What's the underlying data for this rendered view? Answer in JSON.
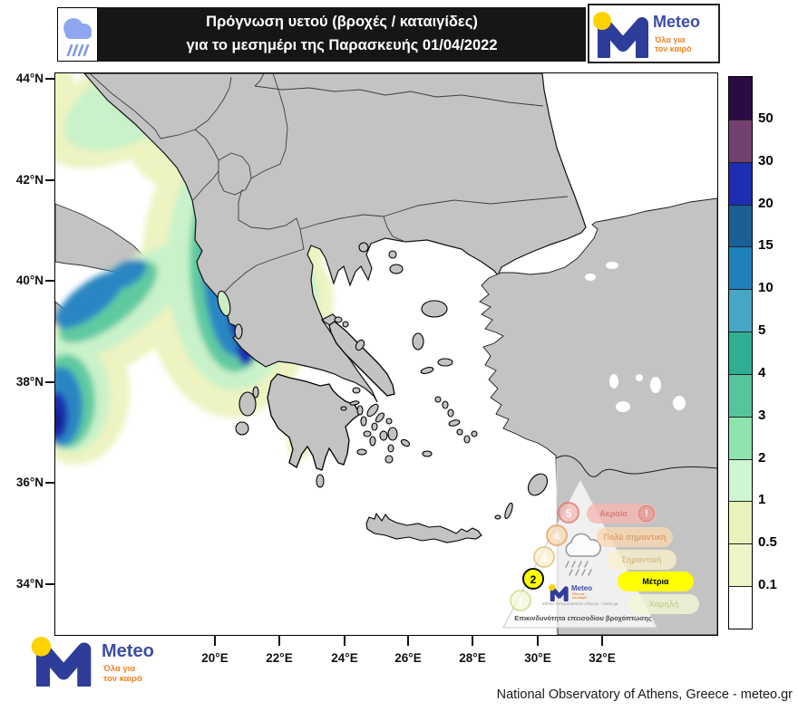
{
  "header": {
    "line1": "Πρόγνωση υετού (βροχές / καταιγίδες)",
    "line2": "για το μεσημέρι της Παρασκευής 01/04/2022"
  },
  "branding": {
    "name": "Meteo",
    "tagline1": "Όλα για",
    "tagline2": "τον καιρό"
  },
  "map": {
    "lat_ticks": [
      "44°N",
      "42°N",
      "40°N",
      "38°N",
      "36°N",
      "34°N"
    ],
    "lon_ticks": [
      "20°E",
      "22°E",
      "24°E",
      "26°E",
      "28°E",
      "30°E",
      "32°E"
    ]
  },
  "colorbar": {
    "levels": [
      "50",
      "30",
      "20",
      "15",
      "10",
      "5",
      "4",
      "3",
      "2",
      "1",
      "0.5",
      "0.1"
    ],
    "colors": [
      "#2b0b45",
      "#73406f",
      "#1e2db4",
      "#1b5f97",
      "#1f81ba",
      "#47a6c6",
      "#2fae93",
      "#55c69c",
      "#8ee4ad",
      "#cdf6d2",
      "#e8f2ba",
      "#edf4c8",
      "#ffffff"
    ]
  },
  "risk_pyramid": {
    "title": "Επικινδυνότητα επεισοδίου βροχόπτωσης",
    "source": "Εθνικό Αστεροσκοπείο Αθηνών - meteo.gr",
    "active_level": "2",
    "levels": [
      {
        "num": "5",
        "label": "Ακραία",
        "badge": "!",
        "pill_bg": "#f6b9b3",
        "text_color": "#dc6f66",
        "active": false
      },
      {
        "num": "4",
        "label": "Πολύ σημαντική",
        "badge": "",
        "pill_bg": "#f9d9b2",
        "text_color": "#e59a58",
        "active": false
      },
      {
        "num": "3",
        "label": "Σημαντική",
        "badge": "",
        "pill_bg": "#faf0cf",
        "text_color": "#d9c27a",
        "active": false
      },
      {
        "num": "2",
        "label": "Μέτρια",
        "badge": "",
        "pill_bg": "#ffff00",
        "text_color": "#000000",
        "active": true
      },
      {
        "num": "1",
        "label": "Χαμηλή",
        "badge": "",
        "pill_bg": "#f5f8d8",
        "text_color": "#ccd789",
        "active": false
      }
    ]
  },
  "footer": {
    "attribution": "National Observatory of Athens, Greece - meteo.gr"
  }
}
